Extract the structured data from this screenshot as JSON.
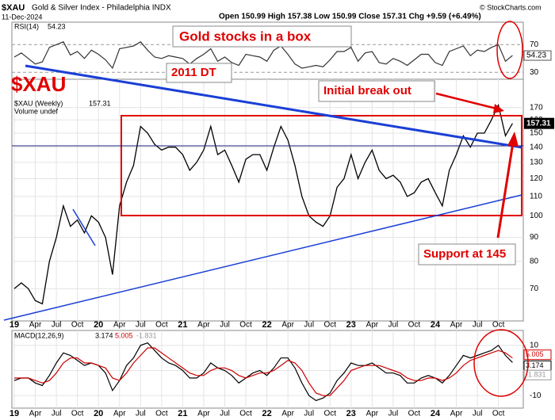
{
  "chart_data": [
    {
      "type": "line",
      "panel": "rsi",
      "title": "RSI(14)",
      "last_value": 54.23,
      "x": [
        "2019-01",
        "2019-02",
        "2019-03",
        "2019-04",
        "2019-05",
        "2019-06",
        "2019-07",
        "2019-08",
        "2019-09",
        "2019-10",
        "2019-11",
        "2019-12",
        "2020-01",
        "2020-02",
        "2020-03",
        "2020-04",
        "2020-05",
        "2020-06",
        "2020-07",
        "2020-08",
        "2020-09",
        "2020-10",
        "2020-11",
        "2020-12",
        "2021-01",
        "2021-02",
        "2021-03",
        "2021-04",
        "2021-05",
        "2021-06",
        "2021-07",
        "2021-08",
        "2021-09",
        "2021-10",
        "2021-11",
        "2021-12",
        "2022-01",
        "2022-02",
        "2022-03",
        "2022-04",
        "2022-05",
        "2022-06",
        "2022-07",
        "2022-08",
        "2022-09",
        "2022-10",
        "2022-11",
        "2022-12",
        "2023-01",
        "2023-02",
        "2023-03",
        "2023-04",
        "2023-05",
        "2023-06",
        "2023-07",
        "2023-08",
        "2023-09",
        "2023-10",
        "2023-11",
        "2023-12",
        "2024-01",
        "2024-02",
        "2024-03",
        "2024-04",
        "2024-05",
        "2024-06",
        "2024-07",
        "2024-08",
        "2024-09",
        "2024-10",
        "2024-11",
        "2024-12"
      ],
      "series": [
        {
          "color": "#333333",
          "values": [
            52,
            58,
            50,
            42,
            45,
            66,
            70,
            74,
            55,
            60,
            50,
            62,
            56,
            48,
            36,
            64,
            66,
            68,
            74,
            62,
            52,
            50,
            54,
            52,
            50,
            42,
            50,
            56,
            64,
            46,
            52,
            44,
            40,
            56,
            54,
            52,
            46,
            62,
            68,
            56,
            42,
            36,
            38,
            40,
            38,
            48,
            60,
            60,
            66,
            46,
            58,
            60,
            44,
            42,
            50,
            46,
            40,
            48,
            56,
            56,
            44,
            40,
            60,
            64,
            68,
            54,
            62,
            60,
            66,
            70,
            46,
            54.23
          ]
        }
      ],
      "ylim": [
        20,
        100
      ],
      "yticks": [
        30,
        70
      ]
    },
    {
      "type": "line",
      "panel": "price",
      "title": "$XAU (Weekly)",
      "name": "$XAU",
      "subtitle": "Volume undef",
      "series": [
        {
          "color": "#000000",
          "values": [
            70,
            72,
            70,
            66,
            65,
            80,
            90,
            105,
            95,
            98,
            92,
            100,
            97,
            90,
            75,
            105,
            118,
            128,
            155,
            150,
            142,
            138,
            140,
            140,
            135,
            125,
            130,
            138,
            155,
            135,
            138,
            128,
            118,
            132,
            135,
            135,
            125,
            140,
            155,
            145,
            128,
            110,
            100,
            97,
            95,
            100,
            115,
            120,
            135,
            120,
            130,
            138,
            125,
            120,
            122,
            118,
            110,
            112,
            118,
            120,
            112,
            105,
            125,
            135,
            148,
            140,
            150,
            150,
            160,
            172,
            148,
            157.31
          ]
        }
      ],
      "ylim": [
        60,
        180
      ],
      "log_scale": true,
      "grid": true,
      "yticks": [
        70,
        80,
        90,
        100,
        110,
        120,
        130,
        140,
        150,
        160,
        170
      ],
      "xticks": [
        {
          "value": "2019-01",
          "label": "19"
        },
        {
          "value": "2019-04",
          "label": "Apr"
        },
        {
          "value": "2019-07",
          "label": "Jul"
        },
        {
          "value": "2019-10",
          "label": "Oct"
        },
        {
          "value": "2020-01",
          "label": "20"
        },
        {
          "value": "2020-04",
          "label": "Apr"
        },
        {
          "value": "2020-07",
          "label": "Jul"
        },
        {
          "value": "2020-10",
          "label": "Oct"
        },
        {
          "value": "2021-01",
          "label": "21"
        },
        {
          "value": "2021-04",
          "label": "Apr"
        },
        {
          "value": "2021-07",
          "label": "Jul"
        },
        {
          "value": "2021-10",
          "label": "Oct"
        },
        {
          "value": "2022-01",
          "label": "22"
        },
        {
          "value": "2022-04",
          "label": "Apr"
        },
        {
          "value": "2022-07",
          "label": "Jul"
        },
        {
          "value": "2022-10",
          "label": "Oct"
        },
        {
          "value": "2023-01",
          "label": "23"
        },
        {
          "value": "2023-04",
          "label": "Apr"
        },
        {
          "value": "2023-07",
          "label": "Jul"
        },
        {
          "value": "2023-10",
          "label": "Oct"
        },
        {
          "value": "2024-01",
          "label": "24"
        },
        {
          "value": "2024-04",
          "label": "Apr"
        },
        {
          "value": "2024-07",
          "label": "Jul"
        },
        {
          "value": "2024-10",
          "label": "Oct"
        }
      ],
      "annotations": [
        "Gold stocks in a box",
        "2011 DT",
        "Initial break out",
        "Support at 145"
      ]
    },
    {
      "type": "line",
      "panel": "macd",
      "title": "MACD(12,26,9)",
      "legend_values": [
        3.174,
        5.005,
        -1.831
      ],
      "series": [
        {
          "name": "MACD",
          "color": "#000000",
          "values": [
            -4,
            -3,
            -3,
            -5,
            -6,
            -2,
            3,
            7,
            6,
            4,
            2,
            3,
            2,
            -1,
            -8,
            -4,
            2,
            5,
            10,
            11,
            8,
            5,
            3,
            2,
            0,
            -3,
            -3,
            -1,
            3,
            1,
            0,
            -2,
            -5,
            -3,
            -1,
            0,
            -2,
            1,
            5,
            5,
            1,
            -5,
            -10,
            -12,
            -11,
            -9,
            -4,
            -1,
            3,
            2,
            2,
            3,
            1,
            -1,
            -1,
            -2,
            -5,
            -5,
            -3,
            -2,
            -3,
            -5,
            -2,
            2,
            6,
            5,
            6,
            7,
            8,
            10,
            6,
            3.174
          ]
        },
        {
          "name": "Signal",
          "color": "#cc0000",
          "values": [
            -3,
            -3,
            -3,
            -4,
            -5,
            -4,
            -1,
            3,
            5,
            5,
            3,
            3,
            2,
            1,
            -3,
            -4,
            -1,
            3,
            6,
            9,
            9,
            7,
            5,
            3,
            1,
            -1,
            -2,
            -2,
            0,
            1,
            1,
            0,
            -2,
            -3,
            -2,
            -1,
            -1,
            0,
            2,
            4,
            3,
            0,
            -5,
            -9,
            -10,
            -10,
            -7,
            -4,
            0,
            1,
            2,
            2,
            2,
            1,
            0,
            -1,
            -3,
            -4,
            -4,
            -3,
            -3,
            -4,
            -3,
            -1,
            2,
            4,
            5,
            6,
            7,
            8,
            7,
            5.005
          ]
        }
      ],
      "ylim": [
        -15,
        15
      ],
      "yticks": [
        -10,
        0,
        10
      ]
    }
  ],
  "header": {
    "symbol": "$XAU",
    "name": "Gold & Silver Index - Philadelphia INDX",
    "date": "11-Dec-2024",
    "ohlc": "Open 150.99 High 157.38 Low 150.99 Close 157.31 Chg +9.59 (+6.49%)",
    "source": "© StockCharts.com"
  }
}
